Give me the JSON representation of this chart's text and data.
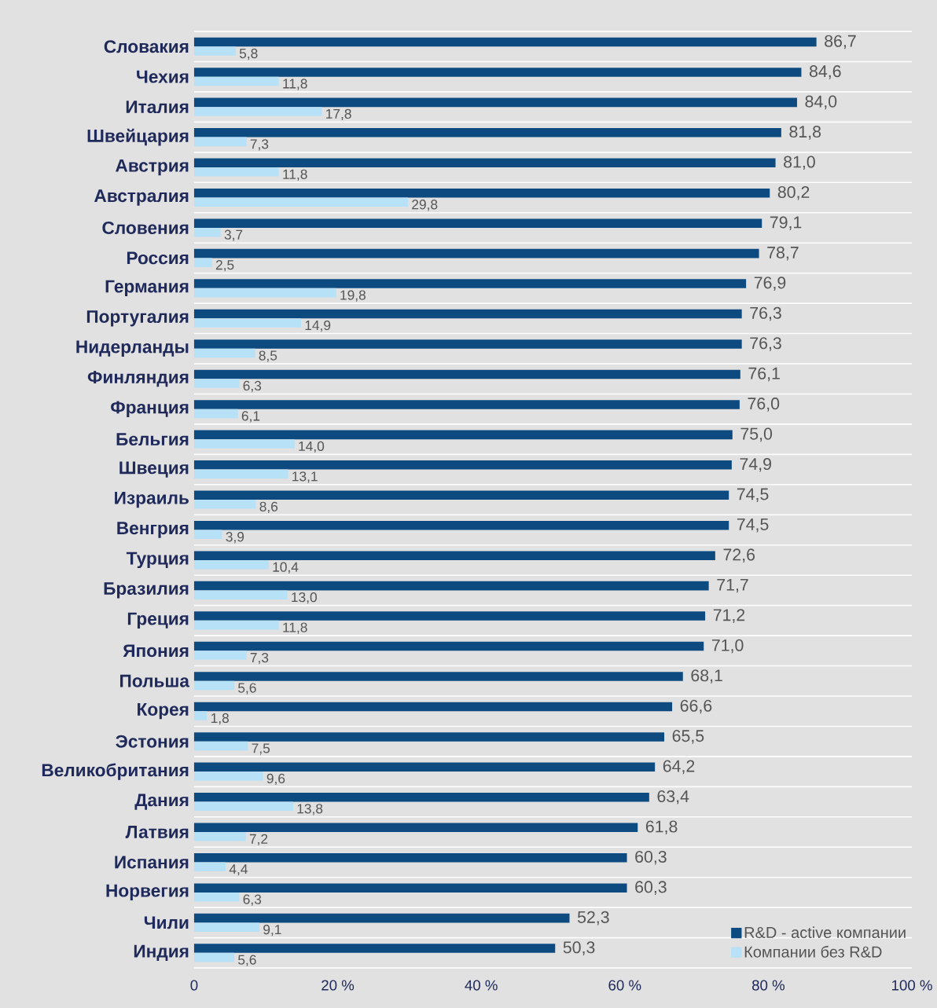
{
  "chart_data": {
    "type": "bar",
    "orientation": "horizontal",
    "categories": [
      "Словакия",
      "Чехия",
      "Италия",
      "Швейцария",
      "Австрия",
      "Австралия",
      "Словения",
      "Россия",
      "Германия",
      "Португалия",
      "Нидерланды",
      "Финляндия",
      "Франция",
      "Бельгия",
      "Швеция",
      "Израиль",
      "Венгрия",
      "Турция",
      "Бразилия",
      "Греция",
      "Япония",
      "Польша",
      "Корея",
      "Эстония",
      "Великобритания",
      "Дания",
      "Латвия",
      "Испания",
      "Норвегия",
      "Чили",
      "Индия"
    ],
    "series": [
      {
        "name": "R&D - active компании",
        "color": "#0d4a80",
        "values": [
          86.7,
          84.6,
          84.0,
          81.8,
          81.0,
          80.2,
          79.1,
          78.7,
          76.9,
          76.3,
          76.3,
          76.1,
          76.0,
          75.0,
          74.9,
          74.5,
          74.5,
          72.6,
          71.7,
          71.2,
          71.0,
          68.1,
          66.6,
          65.5,
          64.2,
          63.4,
          61.8,
          60.3,
          60.3,
          52.3,
          50.3
        ],
        "value_labels": [
          "86,7",
          "84,6",
          "84,0",
          "81,8",
          "81,0",
          "80,2",
          "79,1",
          "78,7",
          "76,9",
          "76,3",
          "76,3",
          "76,1",
          "76,0",
          "75,0",
          "74,9",
          "74,5",
          "74,5",
          "72,6",
          "71,7",
          "71,2",
          "71,0",
          "68,1",
          "66,6",
          "65,5",
          "64,2",
          "63,4",
          "61,8",
          "60,3",
          "60,3",
          "52,3",
          "50,3"
        ]
      },
      {
        "name": "Компании без R&D",
        "color": "#b7e1f7",
        "values": [
          5.8,
          11.8,
          17.8,
          7.3,
          11.8,
          29.8,
          3.7,
          2.5,
          19.8,
          14.9,
          8.5,
          6.3,
          6.1,
          14.0,
          13.1,
          8.6,
          3.9,
          10.4,
          13.0,
          11.8,
          7.3,
          5.6,
          1.8,
          7.5,
          9.6,
          13.8,
          7.2,
          4.4,
          6.3,
          9.1,
          5.6
        ],
        "value_labels": [
          "5,8",
          "11,8",
          "17,8",
          "7,3",
          "11,8",
          "29,8",
          "3,7",
          "2,5",
          "19,8",
          "14,9",
          "8,5",
          "6,3",
          "6,1",
          "14,0",
          "13,1",
          "8,6",
          "3,9",
          "10,4",
          "13,0",
          "11,8",
          "7,3",
          "5,6",
          "1,8",
          "7,5",
          "9,6",
          "13,8",
          "7,2",
          "4,4",
          "6,3",
          "9,1",
          "5,6"
        ]
      }
    ],
    "xlim": [
      0,
      100
    ],
    "xticks": [
      {
        "value": 0,
        "label": "0"
      },
      {
        "value": 20,
        "label": "20 %"
      },
      {
        "value": 40,
        "label": "40 %"
      },
      {
        "value": 60,
        "label": "60 %"
      },
      {
        "value": 80,
        "label": "80 %"
      },
      {
        "value": 100,
        "label": "100 %"
      }
    ],
    "grid": "y",
    "legend": "bottom right"
  }
}
